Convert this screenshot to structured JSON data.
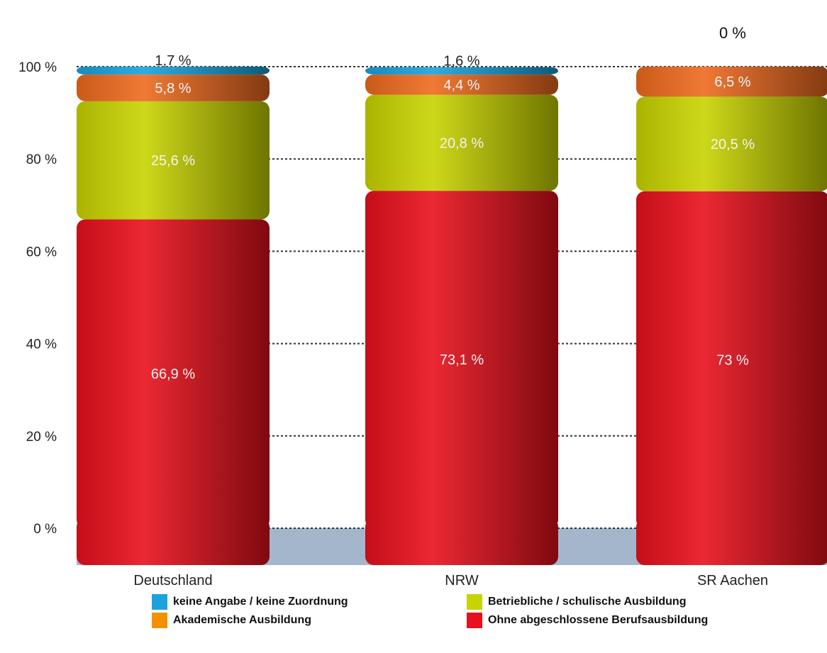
{
  "chart_data": {
    "type": "bar",
    "stacked": true,
    "categories": [
      "Deutschland",
      "NRW",
      "SR Aachen"
    ],
    "series": [
      {
        "name": "Ohne abgeschlossene Berufsausbildung",
        "color": "#e8101c",
        "values": [
          66.9,
          73.1,
          73
        ],
        "labels": [
          "66,9 %",
          "73,1 %",
          "73 %"
        ]
      },
      {
        "name": "Betriebliche / schulische Ausbildung",
        "color": "#c8d400",
        "values": [
          25.6,
          20.8,
          20.5
        ],
        "labels": [
          "25,6 %",
          "20,8 %",
          "20,5 %"
        ]
      },
      {
        "name": "Akademische Ausbildung",
        "color": "#ee6a1e",
        "values": [
          5.8,
          4.4,
          6.5
        ],
        "labels": [
          "5,8 %",
          "4,4 %",
          "6,5 %"
        ]
      },
      {
        "name": "keine Angabe / keine Zuordnung",
        "color": "#1aa3dc",
        "values": [
          1.7,
          1.6,
          0
        ],
        "labels": [
          "1,7 %",
          "1,6 %",
          "0 %"
        ]
      }
    ],
    "y_ticks": [
      "0 %",
      "20 %",
      "40 %",
      "60 %",
      "80 %",
      "100 %"
    ],
    "ylim": [
      0,
      100
    ],
    "grid": "dotted-horizontal",
    "legend_position": "bottom",
    "legend_order": [
      "keine Angabe / keine Zuordnung",
      "Betriebliche / schulische Ausbildung",
      "Akademische Ausbildung",
      "Ohne abgeschlossene Berufsausbildung"
    ],
    "legend_colors": [
      "#1aa3dc",
      "#c8d400",
      "#f39200",
      "#e8101c"
    ],
    "floor_color": "#a3b6cc"
  }
}
